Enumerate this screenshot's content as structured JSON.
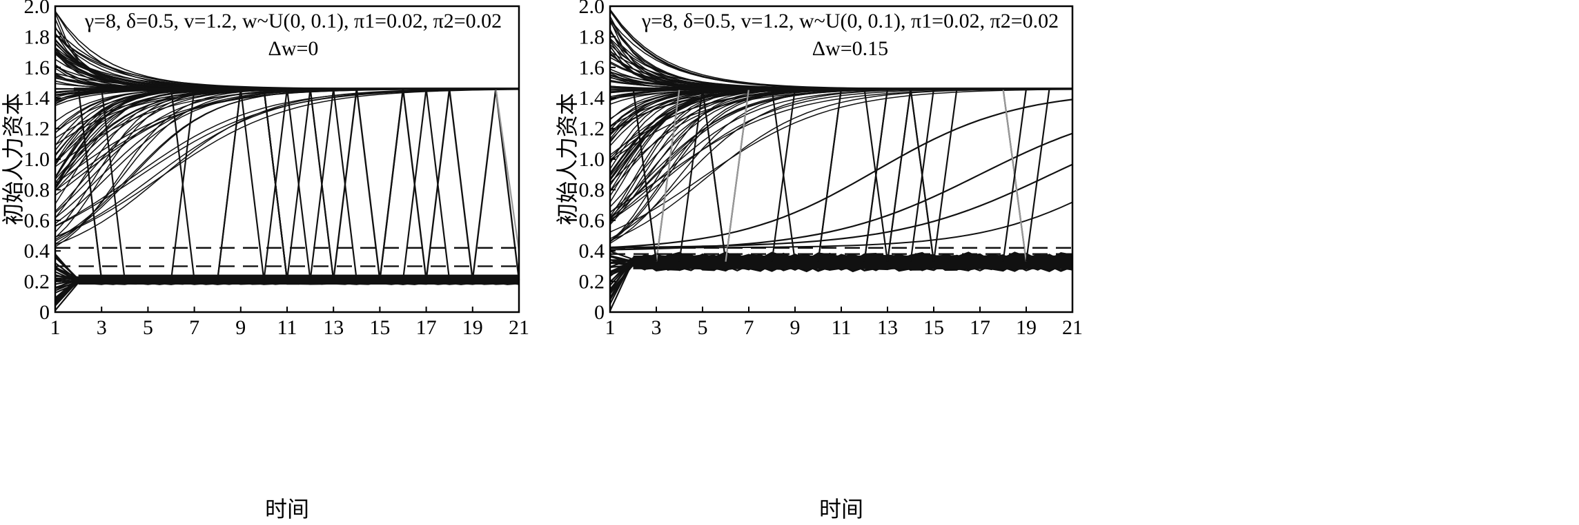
{
  "chart_data": [
    {
      "type": "line",
      "title_line1": "γ=8, δ=0.5, v=1.2, w~U(0, 0.1), π1=0.02, π2=0.02",
      "title_line2": "Δw=0",
      "xlabel": "时间",
      "ylabel": "初始人力资本",
      "xlim": [
        1,
        21
      ],
      "ylim": [
        0,
        2.0
      ],
      "x_ticks": [
        "1",
        "3",
        "5",
        "7",
        "9",
        "11",
        "13",
        "15",
        "17",
        "19",
        "21"
      ],
      "y_ticks": [
        "0",
        "0.2",
        "0.4",
        "0.6",
        "0.8",
        "1.0",
        "1.2",
        "1.4",
        "1.6",
        "1.8",
        "2.0"
      ],
      "grid": false,
      "high_steady_state": 1.46,
      "low_steady_state": 0.21,
      "dashed_thresholds": [
        0.42,
        0.3
      ],
      "series": [
        {
          "style": "decline",
          "x": [
            1,
            2,
            3,
            4,
            5,
            6,
            7,
            8,
            9,
            10,
            11,
            12,
            13,
            14,
            15,
            16,
            17,
            18,
            19,
            20,
            21
          ],
          "values": [
            1.97,
            1.72,
            1.6,
            1.53,
            1.5,
            1.48,
            1.47,
            1.465,
            1.462,
            1.461,
            1.46,
            1.46,
            1.46,
            1.46,
            1.46,
            1.46,
            1.46,
            1.46,
            1.46,
            1.46,
            1.46
          ]
        },
        {
          "style": "rise",
          "x": [
            1,
            3,
            5,
            7,
            9,
            11,
            13,
            15,
            17,
            19,
            21
          ],
          "values": [
            0.56,
            0.78,
            1.02,
            1.22,
            1.36,
            1.43,
            1.455,
            1.46,
            1.46,
            1.46,
            1.46
          ]
        },
        {
          "style": "low",
          "x": [
            1,
            2,
            3,
            5,
            7,
            9,
            11,
            13,
            15,
            17,
            19,
            21
          ],
          "values": [
            0.0,
            0.2,
            0.21,
            0.21,
            0.21,
            0.21,
            0.21,
            0.21,
            0.21,
            0.21,
            0.21,
            0.21
          ]
        },
        {
          "style": "zigzag",
          "x": [
            13,
            14,
            15,
            16,
            17,
            18,
            19,
            20,
            21
          ],
          "values": [
            0.22,
            1.46,
            0.22,
            1.46,
            0.22,
            1.46,
            0.22,
            1.46,
            0.4
          ]
        }
      ]
    },
    {
      "type": "line",
      "title_line1": "γ=8, δ=0.5, v=1.2, w~U(0, 0.1), π1=0.02, π2=0.02",
      "title_line2": "Δw=0.15",
      "xlabel": "时间",
      "ylabel": "初始人力资本",
      "xlim": [
        1,
        21
      ],
      "ylim": [
        0,
        2.0
      ],
      "x_ticks": [
        "1",
        "3",
        "5",
        "7",
        "9",
        "11",
        "13",
        "15",
        "17",
        "19",
        "21"
      ],
      "y_ticks": [
        "0",
        "0.2",
        "0.4",
        "0.6",
        "0.8",
        "1.0",
        "1.2",
        "1.4",
        "1.6",
        "1.8",
        "2.0"
      ],
      "grid": false,
      "high_steady_state": 1.46,
      "low_steady_state": 0.33,
      "dashed_thresholds": [
        0.42,
        0.38
      ],
      "series": [
        {
          "style": "decline",
          "x": [
            1,
            2,
            3,
            4,
            5,
            6,
            7,
            8,
            9,
            10,
            11,
            12,
            13,
            14,
            15,
            16,
            17,
            18,
            19,
            20,
            21
          ],
          "values": [
            1.97,
            1.72,
            1.6,
            1.53,
            1.5,
            1.48,
            1.47,
            1.465,
            1.462,
            1.461,
            1.46,
            1.46,
            1.46,
            1.46,
            1.46,
            1.46,
            1.46,
            1.46,
            1.46,
            1.46,
            1.46
          ]
        },
        {
          "style": "rise",
          "x": [
            1,
            5,
            9,
            13,
            17,
            19,
            21
          ],
          "values": [
            0.45,
            0.5,
            0.6,
            0.85,
            1.1,
            1.2,
            1.24
          ]
        },
        {
          "style": "rise",
          "x": [
            1,
            7,
            11,
            15,
            19,
            21
          ],
          "values": [
            0.42,
            0.45,
            0.52,
            0.63,
            0.76,
            0.84
          ]
        },
        {
          "style": "low",
          "x": [
            1,
            2,
            3,
            5,
            7,
            9,
            11,
            13,
            15,
            17,
            19,
            21
          ],
          "values": [
            0.0,
            0.35,
            0.33,
            0.3,
            0.32,
            0.28,
            0.33,
            0.3,
            0.32,
            0.3,
            0.33,
            0.3
          ]
        }
      ]
    }
  ]
}
